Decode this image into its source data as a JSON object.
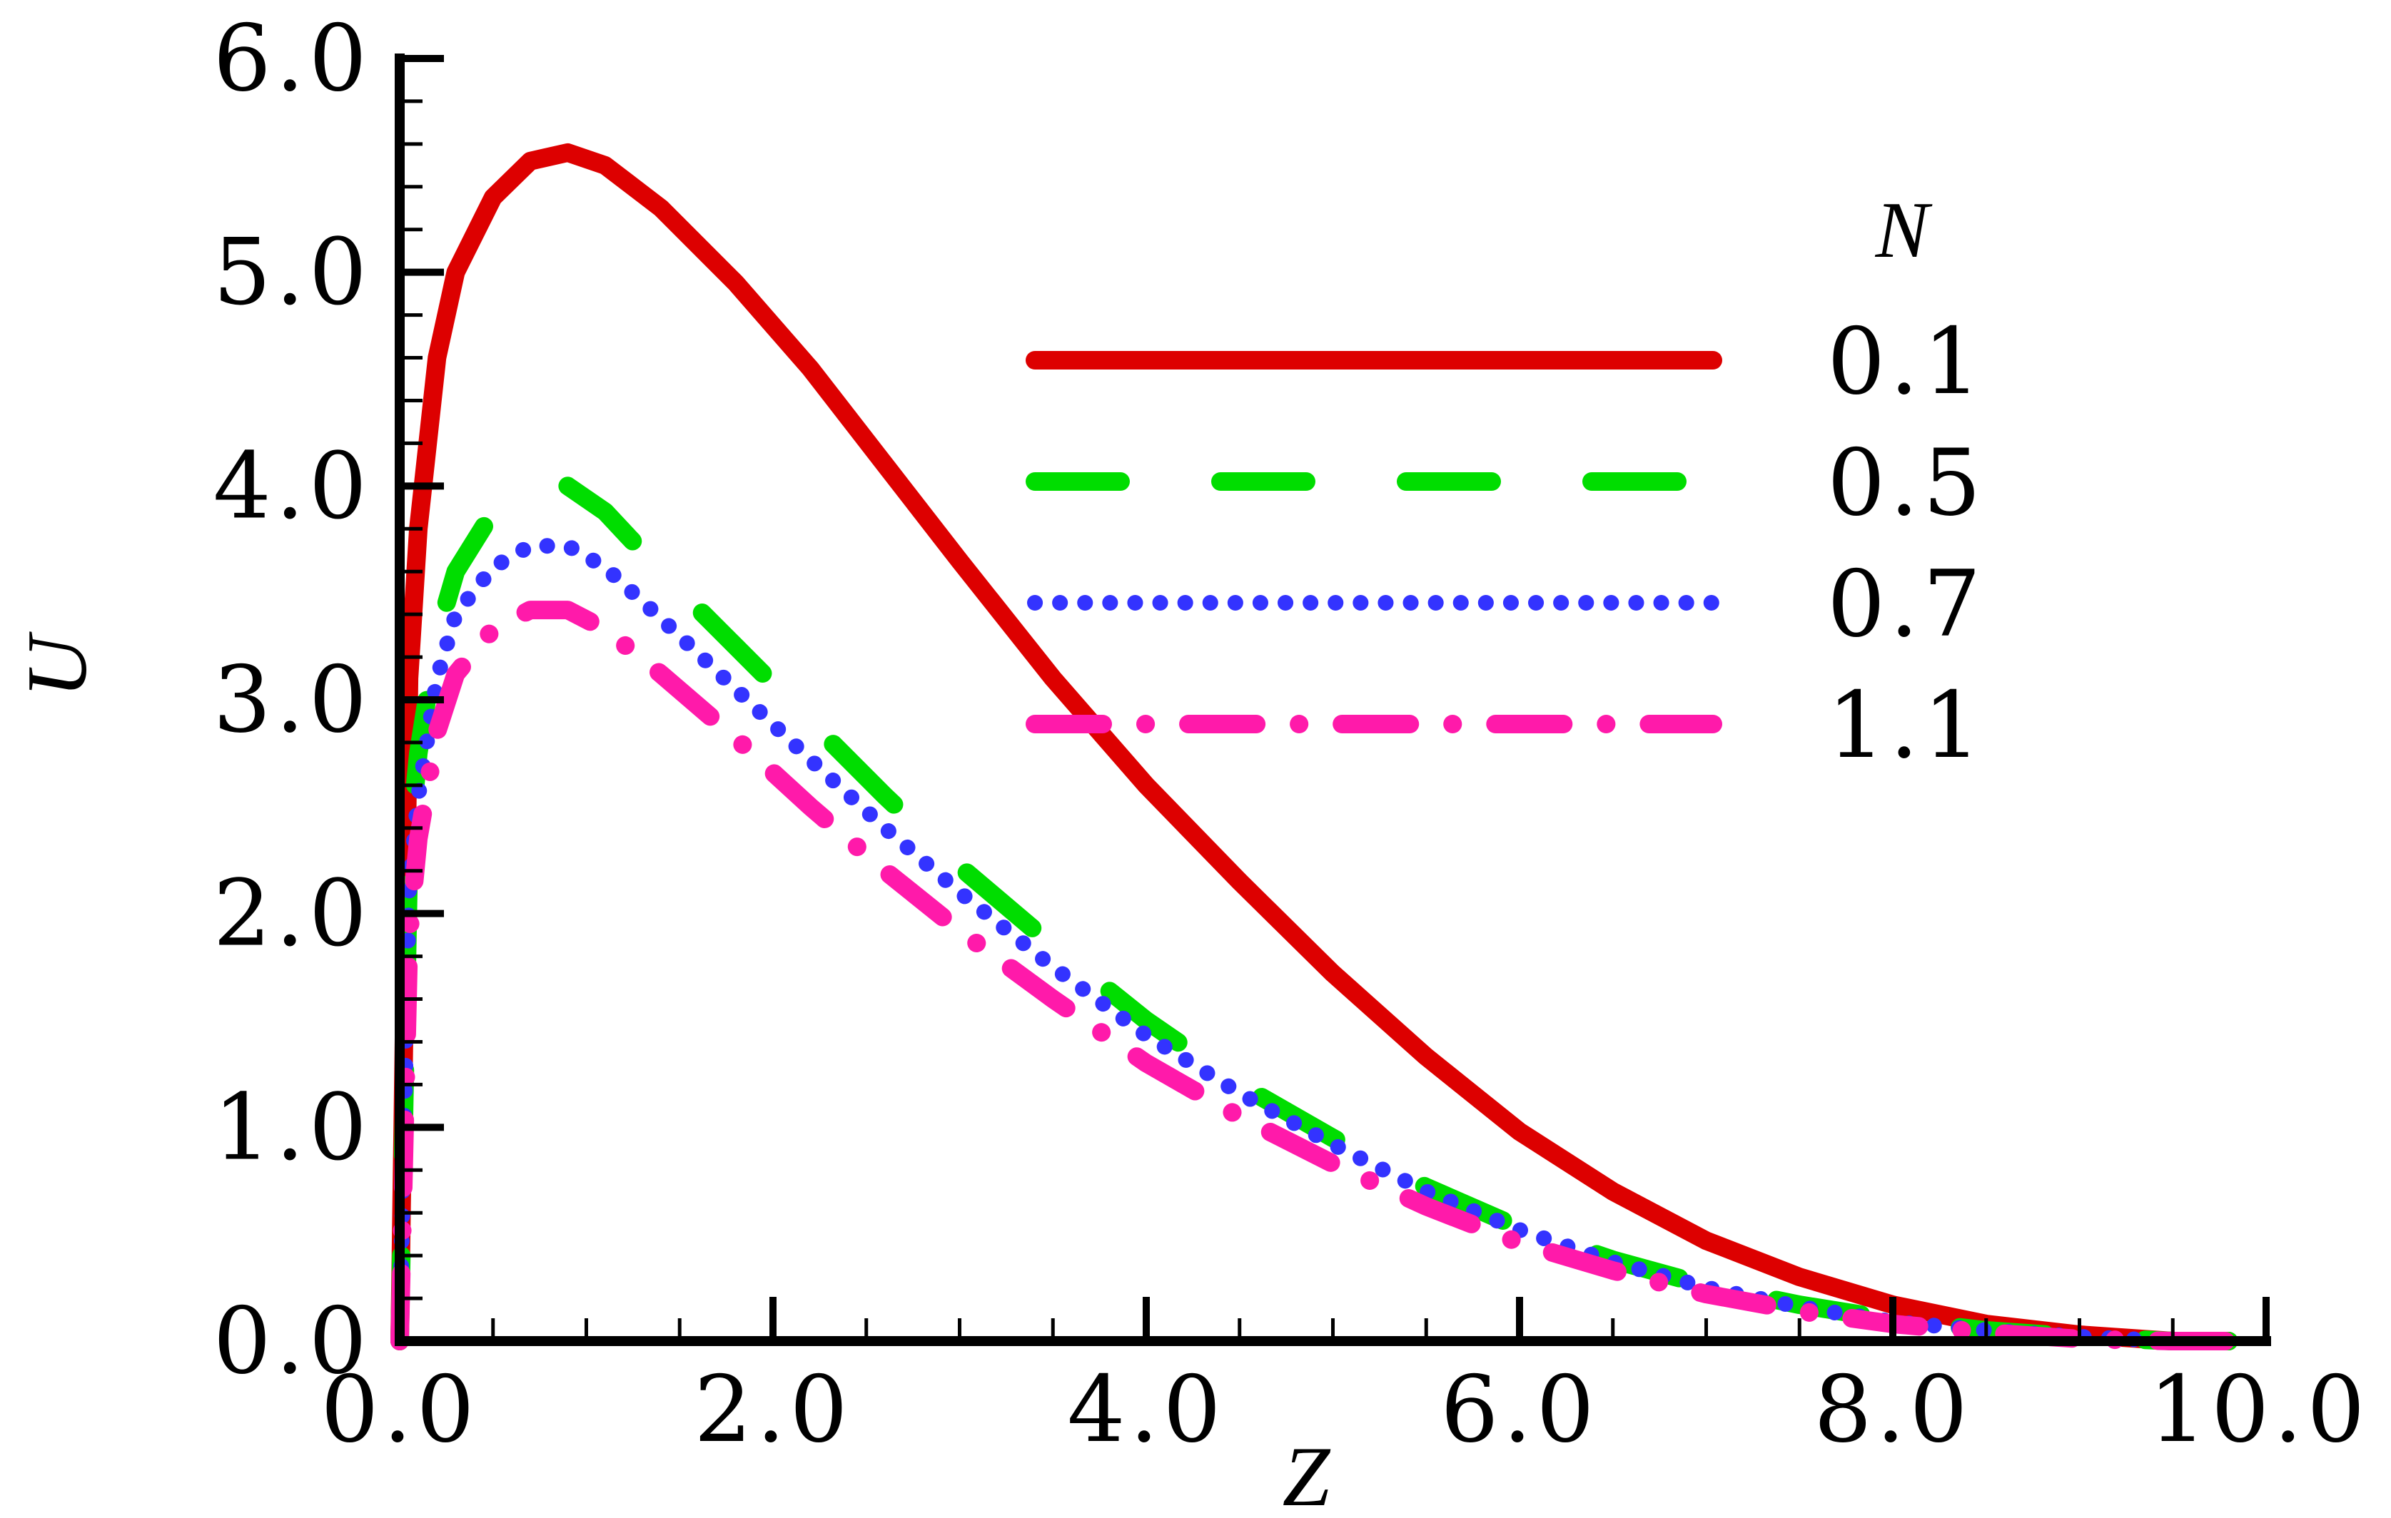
{
  "chart_data": {
    "type": "line",
    "title": "",
    "xlabel": "Z",
    "ylabel": "U",
    "xlim": [
      0,
      10
    ],
    "ylim": [
      0,
      6
    ],
    "xticks": [
      "0.0",
      "2.0",
      "4.0",
      "6.0",
      "8.0",
      "10.0"
    ],
    "yticks": [
      "0.0",
      "1.0",
      "2.0",
      "3.0",
      "4.0",
      "5.0",
      "6.0"
    ],
    "grid": false,
    "legend_title": "N",
    "legend_position": "top-right",
    "series": [
      {
        "name": "0.1",
        "color": "#dd0000",
        "style": "solid",
        "x": [
          0,
          0.05,
          0.1,
          0.2,
          0.3,
          0.5,
          0.7,
          0.9,
          1.1,
          1.4,
          1.8,
          2.2,
          2.6,
          3.0,
          3.5,
          4.0,
          4.5,
          5.0,
          5.5,
          6.0,
          6.5,
          7.0,
          7.5,
          8.0,
          8.5,
          9.0,
          9.5,
          9.8
        ],
        "y": [
          0,
          3.1,
          3.8,
          4.6,
          5.0,
          5.35,
          5.52,
          5.56,
          5.5,
          5.3,
          4.95,
          4.55,
          4.1,
          3.65,
          3.1,
          2.6,
          2.15,
          1.72,
          1.33,
          0.98,
          0.7,
          0.47,
          0.3,
          0.17,
          0.08,
          0.03,
          0.0,
          0.0
        ]
      },
      {
        "name": "0.5",
        "color": "#00dd00",
        "style": "dashed",
        "x": [
          0,
          0.05,
          0.1,
          0.2,
          0.3,
          0.5,
          0.7,
          0.9,
          1.1,
          1.4,
          1.8,
          2.2,
          2.6,
          3.0,
          3.5,
          4.0,
          4.5,
          5.0,
          5.5,
          6.0,
          6.5,
          7.0,
          7.5,
          8.0,
          8.5,
          9.0,
          9.5,
          9.8
        ],
        "y": [
          0,
          2.3,
          2.75,
          3.3,
          3.6,
          3.88,
          4.0,
          4.0,
          3.88,
          3.6,
          3.25,
          2.9,
          2.55,
          2.22,
          1.85,
          1.5,
          1.2,
          0.95,
          0.72,
          0.53,
          0.38,
          0.26,
          0.17,
          0.1,
          0.05,
          0.02,
          0.0,
          0.0
        ]
      },
      {
        "name": "0.7",
        "color": "#3333ff",
        "style": "dotted",
        "x": [
          0,
          0.05,
          0.1,
          0.2,
          0.3,
          0.5,
          0.7,
          0.9,
          1.1,
          1.4,
          1.8,
          2.2,
          2.6,
          3.0,
          3.5,
          4.0,
          4.5,
          5.0,
          5.5,
          6.0,
          6.5,
          7.0,
          7.5,
          8.0,
          8.5,
          9.0,
          9.5,
          9.8
        ],
        "y": [
          0,
          2.1,
          2.55,
          3.1,
          3.4,
          3.62,
          3.72,
          3.72,
          3.62,
          3.38,
          3.05,
          2.72,
          2.4,
          2.1,
          1.75,
          1.43,
          1.16,
          0.92,
          0.7,
          0.52,
          0.37,
          0.25,
          0.16,
          0.09,
          0.05,
          0.02,
          0.0,
          0.0
        ]
      },
      {
        "name": "1.1",
        "color": "#ff1aaa",
        "style": "dashdot",
        "x": [
          0,
          0.05,
          0.1,
          0.2,
          0.3,
          0.5,
          0.7,
          0.9,
          1.1,
          1.4,
          1.8,
          2.2,
          2.6,
          3.0,
          3.5,
          4.0,
          4.5,
          5.0,
          5.5,
          6.0,
          6.5,
          7.0,
          7.5,
          8.0,
          8.5,
          9.0,
          9.5,
          9.8
        ],
        "y": [
          0,
          1.9,
          2.35,
          2.85,
          3.12,
          3.33,
          3.42,
          3.42,
          3.33,
          3.12,
          2.82,
          2.5,
          2.2,
          1.92,
          1.6,
          1.3,
          1.05,
          0.83,
          0.63,
          0.46,
          0.33,
          0.22,
          0.14,
          0.08,
          0.04,
          0.01,
          0.0,
          0.0
        ]
      }
    ]
  }
}
